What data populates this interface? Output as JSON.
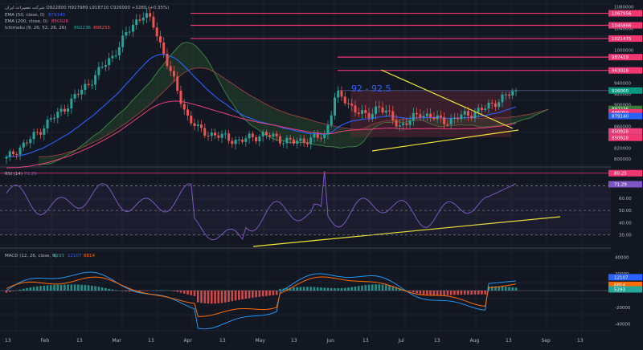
{
  "colors": {
    "background": "#131722",
    "grid": "#1e222d",
    "up": "#26a69a",
    "down": "#ef5350",
    "resistance": "#f23674",
    "ema50": "#2962ff",
    "ema200": "#ec407a",
    "trendline": "#f2e633",
    "cloud_bull": "#3a7a3a",
    "cloud_bear": "#7a2a3a",
    "rsi": "#7e57c2",
    "macd": "#2196f3",
    "signal": "#ff6d00",
    "hist_up": "#26a69a",
    "hist_down": "#ef5350",
    "axis_text": "#b2b5be"
  },
  "legend": {
    "symbol_line": "شرکت تعمیرات ایران  O922800  H927989  L918710  C926000  +3280 (+0.35%)",
    "ema50": "EMA (50, close, 0)",
    "ema50_value": "879140",
    "ema200": "EMA (200, close, 0)",
    "ema200_value": "850928",
    "ichimoku": "Ichimoku (9, 26, 52, 26, 26)",
    "ichimoku_v1": "892236",
    "ichimoku_v2": "888255",
    "rsi": "RSI (14)",
    "rsi_value": "71.29",
    "macd": "MACD (12, 26, close, 9)",
    "macd_v1": "5293",
    "macd_v2": "12107",
    "macd_v3": "6814"
  },
  "annotation": "92 - 92.5",
  "price_axis": [
    "1080000",
    "1040000",
    "1000000",
    "960000",
    "940000",
    "920000",
    "900000",
    "880000",
    "860000",
    "840000",
    "820000",
    "800000"
  ],
  "price_tags": [
    {
      "value": "1067956",
      "color": "#f23674"
    },
    {
      "value": "1045866",
      "color": "#f23674"
    },
    {
      "value": "1021475",
      "color": "#f23674"
    },
    {
      "value": "987419",
      "color": "#f23674"
    },
    {
      "value": "963028",
      "color": "#f23674"
    },
    {
      "value": "926000",
      "color": "#089981"
    },
    {
      "value": "892236",
      "color": "#3a7a3a"
    },
    {
      "value": "886059",
      "color": "#f23674"
    },
    {
      "value": "879140",
      "color": "#2962ff"
    },
    {
      "value": "850928",
      "color": "#ec407a"
    },
    {
      "value": "850928",
      "color": "#f23674"
    }
  ],
  "rsi_axis": [
    "80.00",
    "70.00",
    "60.00",
    "50.00",
    "40.00",
    "30.00"
  ],
  "rsi_tags": [
    {
      "value": "80.25",
      "color": "#f23674"
    },
    {
      "value": "71.29",
      "color": "#7e57c2"
    }
  ],
  "macd_axis": [
    "40000",
    "20000",
    "0",
    "-20000",
    "-40000"
  ],
  "macd_tags": [
    {
      "value": "12107",
      "color": "#2962ff"
    },
    {
      "value": "6814",
      "color": "#ff6d00"
    },
    {
      "value": "5293",
      "color": "#26a69a"
    }
  ],
  "time_axis": [
    "13",
    "Feb",
    "13",
    "Mar",
    "13",
    "Apr",
    "13",
    "May",
    "13",
    "Jun",
    "13",
    "Jul",
    "13",
    "Aug",
    "13",
    "Sep",
    "13"
  ],
  "chart_data": {
    "type": "candlestick",
    "resistance_levels": [
      1067956,
      1045866,
      1021475,
      987419,
      963028,
      926000
    ],
    "rsi_levels": [
      80.25,
      70,
      50,
      30
    ],
    "ohlc_close_path_approx": [
      800000,
      818000,
      832000,
      850000,
      870000,
      885000,
      905000,
      925000,
      945000,
      968000,
      990000,
      1020000,
      1050000,
      1067956,
      1040000,
      985000,
      930000,
      880000,
      855000,
      848000,
      842000,
      838000,
      832000,
      840000,
      845000,
      842000,
      836000,
      830000,
      835000,
      838000,
      842000,
      920000,
      905000,
      890000,
      875000,
      900000,
      880000,
      862000,
      870000,
      885000,
      878000,
      870000,
      872000,
      880000,
      886000,
      892000,
      905000,
      915000,
      926000
    ],
    "last_close": 926000,
    "rsi_last": 71.29,
    "macd_last": {
      "macd": 12107,
      "signal": 6814,
      "hist": 5293
    }
  }
}
